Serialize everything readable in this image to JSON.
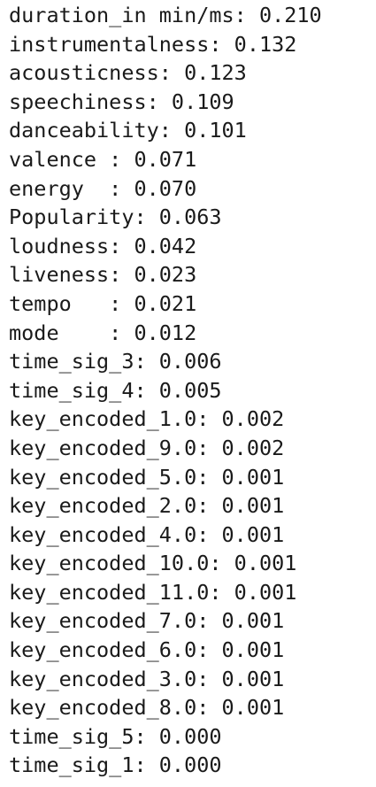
{
  "output": {
    "lines": [
      "duration_in min/ms: 0.210",
      "instrumentalness: 0.132",
      "acousticness: 0.123",
      "speechiness: 0.109",
      "danceability: 0.101",
      "valence : 0.071",
      "energy  : 0.070",
      "Popularity: 0.063",
      "loudness: 0.042",
      "liveness: 0.023",
      "tempo   : 0.021",
      "mode    : 0.012",
      "time_sig_3: 0.006",
      "time_sig_4: 0.005",
      "key_encoded_1.0: 0.002",
      "key_encoded_9.0: 0.002",
      "key_encoded_5.0: 0.001",
      "key_encoded_2.0: 0.001",
      "key_encoded_4.0: 0.001",
      "key_encoded_10.0: 0.001",
      "key_encoded_11.0: 0.001",
      "key_encoded_7.0: 0.001",
      "key_encoded_6.0: 0.001",
      "key_encoded_3.0: 0.001",
      "key_encoded_8.0: 0.001",
      "time_sig_5: 0.000",
      "time_sig_1: 0.000"
    ]
  }
}
